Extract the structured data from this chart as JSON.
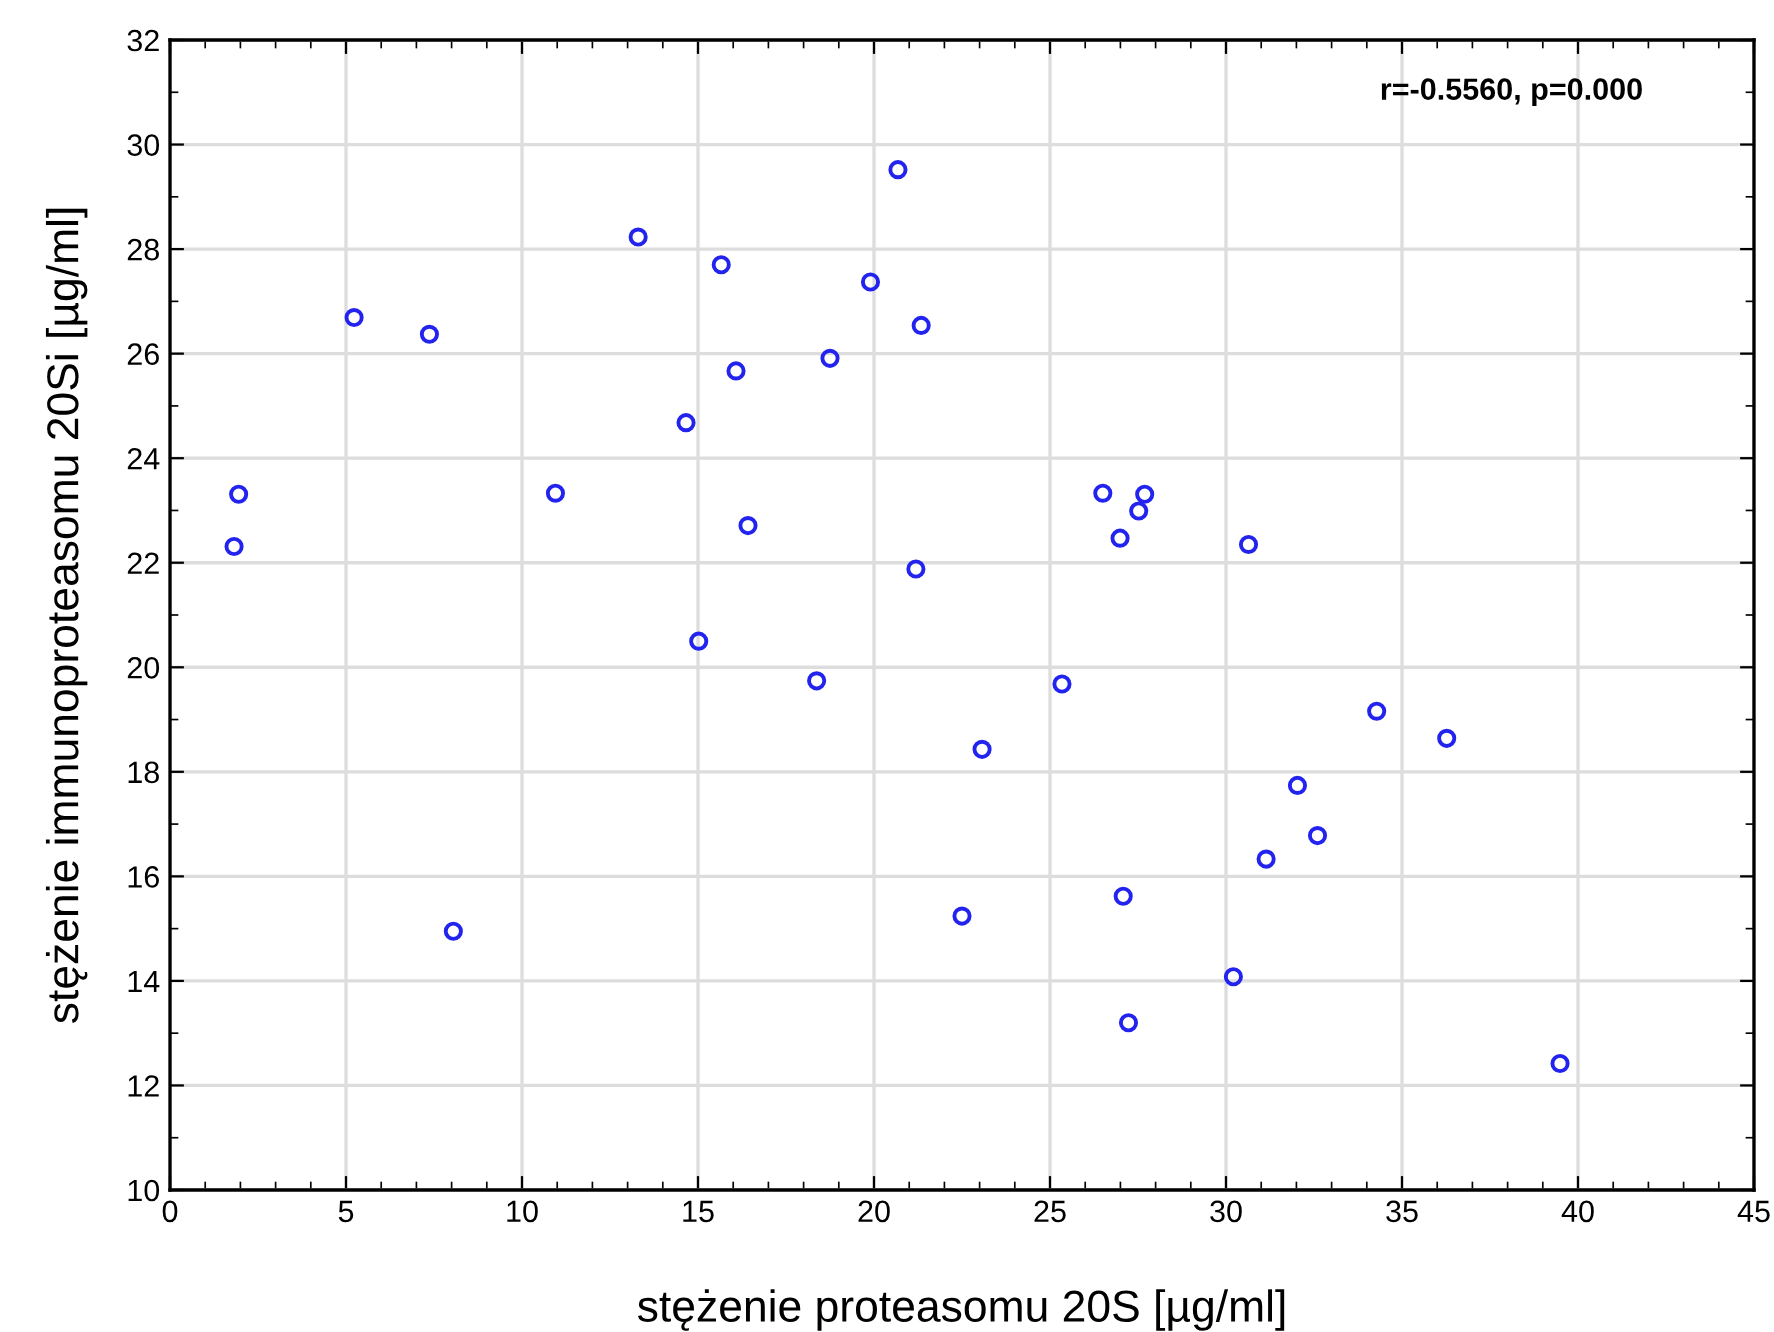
{
  "chart_data": {
    "type": "scatter",
    "xlabel": "stężenie proteasomu 20S [µg/ml]",
    "ylabel": "stężenie immunoproteasomu 20Si [µg/ml]",
    "annotations": [
      "r=-0.5560, p=0.000"
    ],
    "series": [
      {
        "color": "#2323f0",
        "x": [
          1.95,
          1.82,
          5.23,
          7.37,
          10.95,
          13.3,
          15.66,
          20.68,
          19.9,
          21.34,
          18.75,
          16.08,
          14.66,
          16.42,
          21.19,
          26.5,
          27.69,
          27.52,
          26.99,
          30.64,
          15.02,
          18.37,
          8.05,
          22.5,
          25.34,
          23.07,
          27.08,
          27.23,
          30.21,
          31.14,
          32.03,
          32.6,
          34.28,
          36.27,
          39.49
        ],
        "values": [
          23.31,
          22.31,
          26.69,
          26.37,
          23.33,
          28.23,
          27.7,
          29.52,
          27.37,
          26.54,
          25.91,
          25.67,
          24.68,
          22.71,
          21.88,
          23.33,
          23.31,
          22.99,
          22.47,
          22.35,
          20.5,
          19.74,
          14.95,
          15.24,
          19.68,
          18.43,
          15.62,
          13.2,
          14.08,
          16.33,
          17.74,
          16.78,
          19.16,
          18.64,
          12.42
        ]
      }
    ],
    "xlim": [
      0,
      45
    ],
    "xticks": [
      0,
      5,
      10,
      15,
      20,
      25,
      30,
      35,
      40,
      45
    ],
    "ylim": [
      10,
      32
    ],
    "yticks": [
      10,
      12,
      14,
      16,
      18,
      20,
      22,
      24,
      26,
      28,
      30,
      32
    ],
    "grid": true,
    "marker": "circle",
    "legend": false
  }
}
